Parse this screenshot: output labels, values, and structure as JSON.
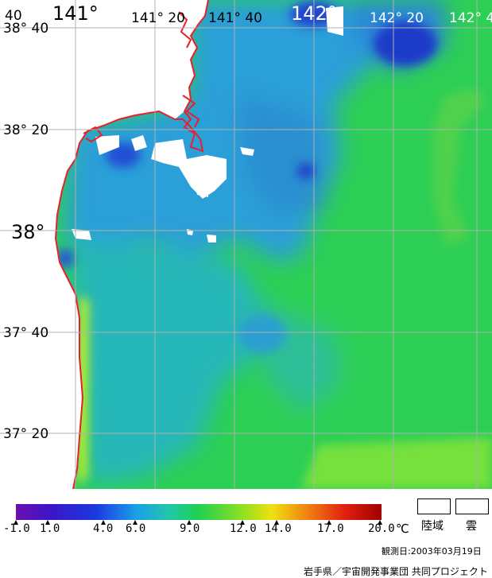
{
  "map": {
    "lon_labels": [
      "141°",
      "141° 20",
      "141° 40",
      "142°",
      "142° 20",
      "142° 4"
    ],
    "lat_labels": [
      "38° 40",
      "38° 20",
      "38°",
      "37° 40",
      "37° 20"
    ],
    "corner_label": "40"
  },
  "colors": {
    "sea_green": "#2ecc40",
    "sea_blue": "#2e9be0",
    "deep_blue": "#1d3ad6",
    "coast_red": "#e8202a",
    "land_white": "#ffffff"
  },
  "scale": {
    "ticks": [
      "-1.0",
      "1.0",
      "4.0",
      "6.0",
      "9.0",
      "12.0",
      "14.0",
      "17.0",
      "20.0"
    ],
    "unit": "℃"
  },
  "legend": {
    "land": "陸域",
    "cloud": "雲"
  },
  "footer": {
    "observation_date": "観測日:2003年03月19日",
    "credit": "岩手県／宇宙開発事業団 共同プロジェクト"
  }
}
